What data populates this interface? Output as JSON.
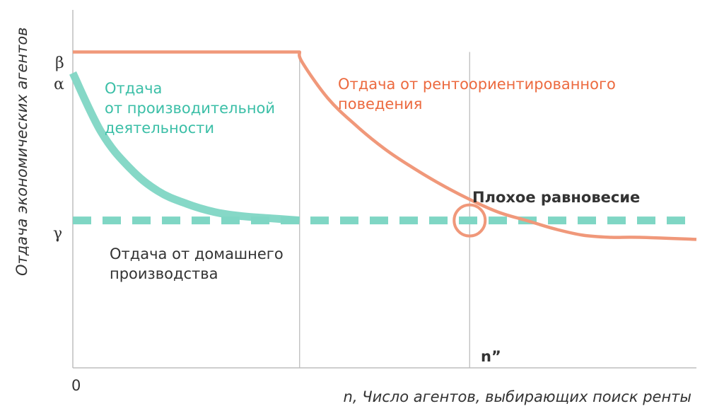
{
  "chart_data": {
    "type": "line",
    "title": "",
    "xlabel": "n, Число агентов, выбирающих поиск ренты",
    "ylabel": "Отдача экономических агентов",
    "x_tick_labels": [
      "0",
      "n”"
    ],
    "y_tick_labels": [
      "β",
      "α",
      "γ"
    ],
    "y_levels": {
      "beta": 0.5,
      "alpha": 0.4,
      "gamma": -0.3
    },
    "xlim": [
      0,
      11
    ],
    "ylim": [
      -1,
      0.7
    ],
    "series": [
      {
        "name": "Отдача от производительной деятельности",
        "label_lines": [
          "Отдача",
          "от производительной",
          "деятельности"
        ],
        "color": "#7fd6c4",
        "x": [
          0,
          0.5,
          1,
          1.5,
          2,
          2.5,
          3,
          3.5,
          4
        ],
        "y": [
          0.4,
          0.12,
          -0.05,
          -0.16,
          -0.22,
          -0.26,
          -0.28,
          -0.29,
          -0.3
        ]
      },
      {
        "name": "Отдача от рентоориентированного поведения",
        "label_lines": [
          "Отдача от рентоориентированного",
          "поведения"
        ],
        "color": "#f0987a",
        "x": [
          0,
          4,
          4.05,
          4.5,
          5,
          5.5,
          6,
          6.5,
          7,
          7.5,
          8,
          8.5,
          9,
          9.5,
          10,
          11
        ],
        "y": [
          0.5,
          0.5,
          0.45,
          0.28,
          0.15,
          0.04,
          -0.05,
          -0.13,
          -0.2,
          -0.26,
          -0.3,
          -0.34,
          -0.37,
          -0.38,
          -0.38,
          -0.39
        ]
      },
      {
        "name": "Отдача от домашнего производства",
        "label_lines": [
          "Отдача от домашнего",
          "производства"
        ],
        "color": "#7fd6c4",
        "style": "dashed",
        "x": [
          0,
          11
        ],
        "y": [
          -0.3,
          -0.3
        ]
      }
    ],
    "vertical_lines_x": [
      4,
      7
    ],
    "annotation": {
      "text": "Плохое равновесие",
      "x": 7,
      "y": -0.3
    },
    "accent_colors": {
      "teal": "#7fd6c4",
      "teal_text": "#3bbfa7",
      "orange": "#f0987a",
      "orange_text": "#ec6a3f",
      "axis": "#bdbdbd"
    }
  }
}
